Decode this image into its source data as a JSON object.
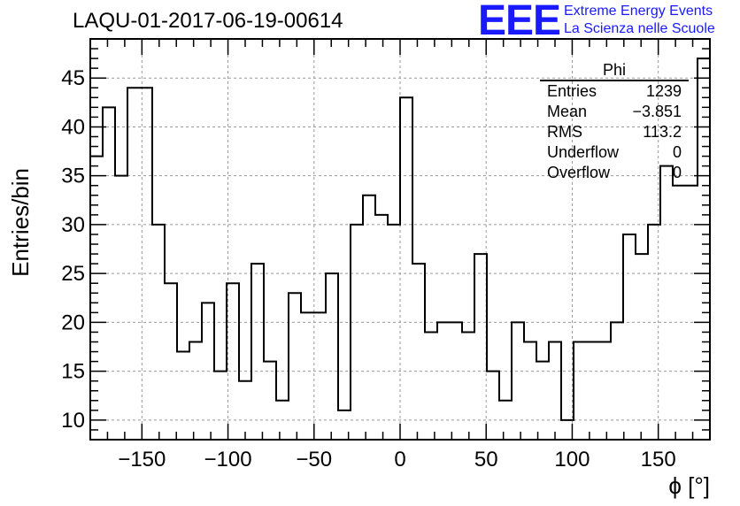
{
  "plot": {
    "title": "LAQU-01-2017-06-19-00614",
    "xlabel": "ϕ [°]",
    "ylabel": "Entries/bin"
  },
  "logo": {
    "mark": "EEE",
    "line1": "Extreme Energy Events",
    "line2": "La Scienza nelle Scuole",
    "color": "#1a1aff"
  },
  "stats": {
    "title": "Phi",
    "rows": [
      {
        "label": "Entries",
        "value": "1239"
      },
      {
        "label": "Mean",
        "value": "−3.851"
      },
      {
        "label": "RMS",
        "value": "113.2"
      },
      {
        "label": "Underflow",
        "value": "0"
      },
      {
        "label": "Overflow",
        "value": "0"
      }
    ]
  },
  "chart_data": {
    "type": "bar",
    "style": "step histogram",
    "title": "LAQU-01-2017-06-19-00614",
    "xlabel": "ϕ [°]",
    "ylabel": "Entries/bin",
    "xlim": [
      -180,
      180
    ],
    "ylim": [
      8,
      49
    ],
    "xticks": [
      -150,
      -100,
      -50,
      0,
      50,
      100,
      150
    ],
    "yticks": [
      10,
      15,
      20,
      25,
      30,
      35,
      40,
      45
    ],
    "grid": true,
    "bin_width": 7.2,
    "bin_edges_start": -180,
    "values": [
      37,
      42,
      35,
      44,
      44,
      30,
      24,
      17,
      18,
      22,
      15,
      24,
      14,
      26,
      16,
      12,
      23,
      21,
      21,
      25,
      11,
      30,
      33,
      31,
      30,
      43,
      26,
      19,
      20,
      20,
      19,
      27,
      15,
      12,
      20,
      18,
      16,
      18,
      10,
      18,
      18,
      18,
      20,
      29,
      27,
      30,
      36,
      34,
      34,
      47
    ]
  }
}
